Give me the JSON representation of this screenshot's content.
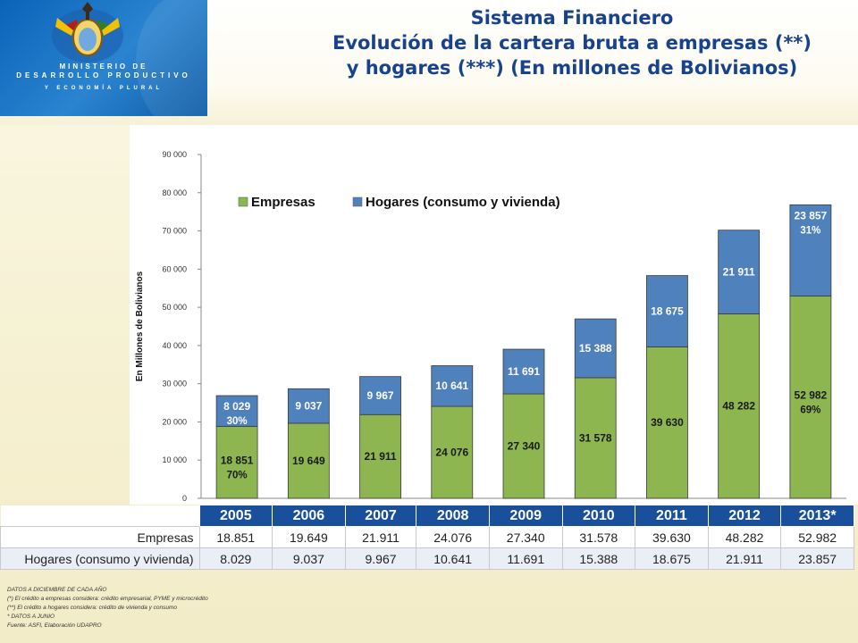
{
  "header": {
    "ministry_line1": "MINISTERIO DE",
    "ministry_line2": "DESARROLLO PRODUCTIVO",
    "ministry_line3": "Y ECONOMÍA PLURAL",
    "title_line1": "Sistema Financiero",
    "title_line2": "Evolución de la cartera bruta a empresas (**)",
    "title_line3": "y hogares (***) (En millones de Bolivianos)"
  },
  "chart_data": {
    "type": "bar",
    "stacked": true,
    "categories": [
      "2005",
      "2006",
      "2007",
      "2008",
      "2009",
      "2010",
      "2011",
      "2012",
      "2013*"
    ],
    "series": [
      {
        "name": "Empresas",
        "color": "#8db650",
        "values": [
          18851,
          19649,
          21911,
          24076,
          27340,
          31578,
          39630,
          48282,
          52982
        ],
        "labels": [
          "18 851",
          "19 649",
          "21 911",
          "24 076",
          "27 340",
          "31 578",
          "39 630",
          "48 282",
          "52 982"
        ]
      },
      {
        "name": "Hogares (consumo y vivienda)",
        "color": "#4f81bd",
        "values": [
          8029,
          9037,
          9967,
          10641,
          11691,
          15388,
          18675,
          21911,
          23857
        ],
        "labels": [
          "8 029",
          "9 037",
          "9 967",
          "10 641",
          "11 691",
          "15 388",
          "18 675",
          "21 911",
          "23 857"
        ]
      }
    ],
    "percent_labels": [
      {
        "category": "2005",
        "series": "Empresas",
        "text": "70%"
      },
      {
        "category": "2005",
        "series": "Hogares (consumo y vivienda)",
        "text": "30%"
      },
      {
        "category": "2013*",
        "series": "Empresas",
        "text": "69%"
      },
      {
        "category": "2013*",
        "series": "Hogares (consumo y vivienda)",
        "text": "31%"
      }
    ],
    "ylabel": "En Millones de Bolivianos",
    "ylim": [
      0,
      90000
    ],
    "yticks": [
      "0",
      "10 000",
      "20 000",
      "30 000",
      "40 000",
      "50 000",
      "60 000",
      "70 000",
      "80 000",
      "90 000"
    ],
    "grid": false,
    "legend": "top"
  },
  "table": {
    "headers": [
      "2005",
      "2006",
      "2007",
      "2008",
      "2009",
      "2010",
      "2011",
      "2012",
      "2013*"
    ],
    "rows": [
      {
        "label": "Empresas",
        "values": [
          "18.851",
          "19.649",
          "21.911",
          "24.076",
          "27.340",
          "31.578",
          "39.630",
          "48.282",
          "52.982"
        ]
      },
      {
        "label": "Hogares (consumo y vivienda)",
        "values": [
          "8.029",
          "9.037",
          "9.967",
          "10.641",
          "11.691",
          "15.388",
          "18.675",
          "21.911",
          "23.857"
        ]
      }
    ]
  },
  "notes": [
    "DATOS A DICIEMBRE DE CADA AÑO",
    "(*) El crédito a empresas considera: crédito empresarial, PYME y microcrédito",
    "(**) El crédito a hogares considera: crédito de vivienda y consumo",
    "* DATOS A JUNIO",
    "Fuente: ASFI, Elaboración UDAPRO"
  ]
}
